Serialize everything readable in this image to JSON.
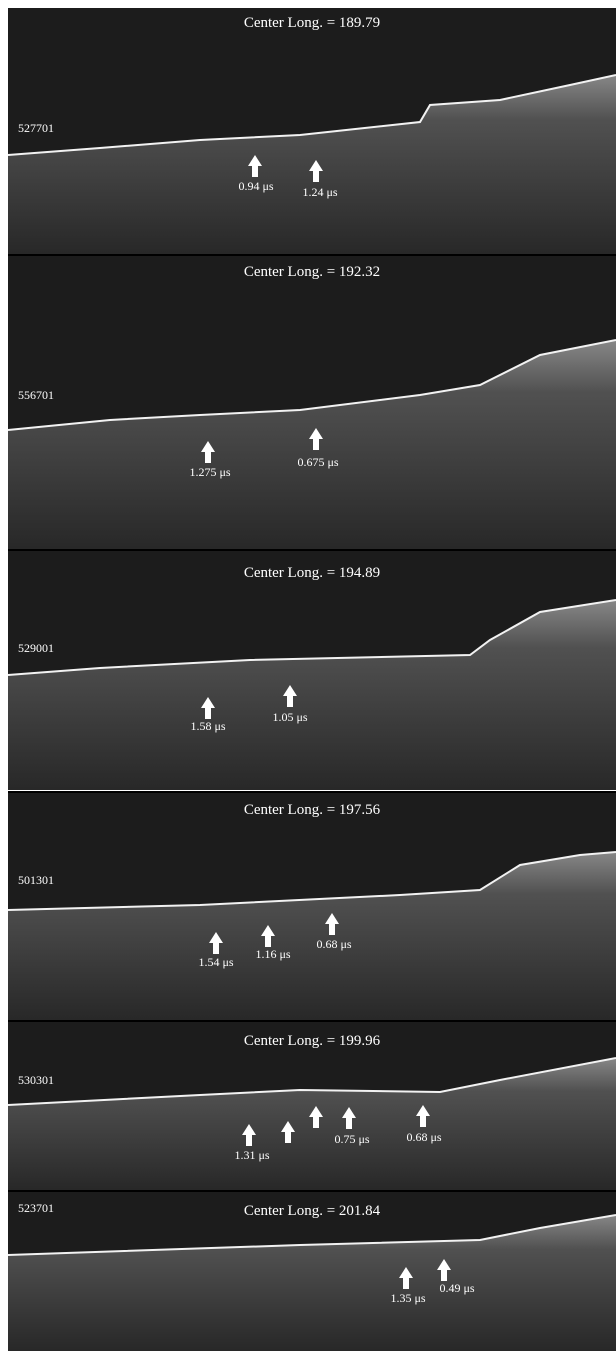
{
  "panels": [
    {
      "title": "Center Long. = 189.79",
      "orbit": "527701",
      "arrows": [
        {
          "label": "0.94 μs"
        },
        {
          "label": "1.24 μs"
        }
      ]
    },
    {
      "title": "Center Long. = 192.32",
      "orbit": "556701",
      "arrows": [
        {
          "label": "1.275 μs"
        },
        {
          "label": "0.675 μs"
        }
      ]
    },
    {
      "title": "Center Long. = 194.89",
      "orbit": "529001",
      "arrows": [
        {
          "label": "1.58 μs"
        },
        {
          "label": "1.05 μs"
        }
      ]
    },
    {
      "title": "Center Long. = 197.56",
      "orbit": "501301",
      "arrows": [
        {
          "label": "1.54 μs"
        },
        {
          "label": "1.16 μs"
        },
        {
          "label": "0.68 μs"
        }
      ]
    },
    {
      "title": "Center Long. = 199.96",
      "orbit": "530301",
      "arrows": [
        {
          "label": "1.31 μs"
        },
        {
          "label": "0.75 μs"
        },
        {
          "label": "0.68 μs"
        }
      ]
    },
    {
      "title": "Center Long. = 201.84",
      "orbit": "523701",
      "arrows": [
        {
          "label": "1.35 μs"
        },
        {
          "label": "0.49 μs"
        }
      ]
    }
  ]
}
